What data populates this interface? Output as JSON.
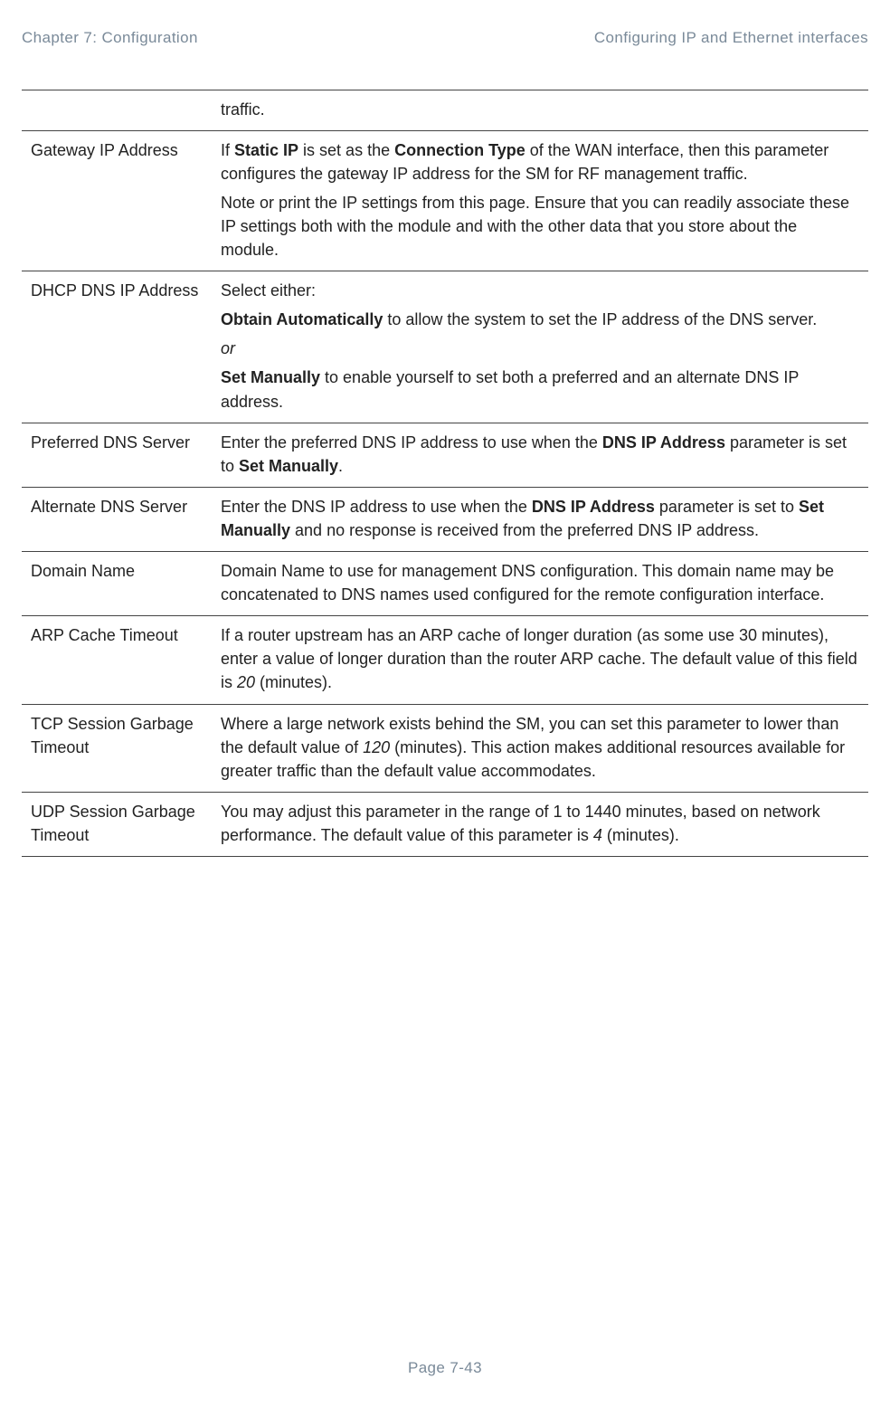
{
  "header": {
    "left": "Chapter 7:  Configuration",
    "right": "Configuring IP and Ethernet interfaces"
  },
  "footer": {
    "text": "Page 7-43"
  },
  "table": {
    "rows": [
      {
        "attr": "",
        "paras": [
          {
            "runs": [
              {
                "t": "traffic."
              }
            ]
          }
        ]
      },
      {
        "attr": "Gateway IP Address",
        "paras": [
          {
            "runs": [
              {
                "t": "If "
              },
              {
                "t": "Static IP",
                "b": true
              },
              {
                "t": " is set as the "
              },
              {
                "t": "Connection Type",
                "b": true
              },
              {
                "t": " of the WAN interface, then this parameter configures the gateway IP address for the SM for RF management traffic."
              }
            ]
          },
          {
            "runs": [
              {
                "t": "Note or print the IP settings from this page. Ensure that you can readily associate these IP settings both with the module and with the other data that you store about the module."
              }
            ]
          }
        ]
      },
      {
        "attr": "DHCP DNS IP Address",
        "paras": [
          {
            "runs": [
              {
                "t": "Select either:"
              }
            ]
          },
          {
            "runs": [
              {
                "t": "Obtain Automatically",
                "b": true
              },
              {
                "t": " to allow the system to set the IP address of the DNS server."
              }
            ]
          },
          {
            "runs": [
              {
                "t": "or",
                "i": true
              }
            ]
          },
          {
            "runs": [
              {
                "t": "Set Manually",
                "b": true
              },
              {
                "t": " to enable yourself to set both a preferred and an alternate DNS IP address."
              }
            ]
          }
        ]
      },
      {
        "attr": "Preferred DNS Server",
        "paras": [
          {
            "runs": [
              {
                "t": "Enter the preferred DNS IP address to use when the "
              },
              {
                "t": "DNS IP Address",
                "b": true
              },
              {
                "t": " parameter is set to "
              },
              {
                "t": "Set Manually",
                "b": true
              },
              {
                "t": "."
              }
            ]
          }
        ]
      },
      {
        "attr": "Alternate DNS Server",
        "paras": [
          {
            "runs": [
              {
                "t": "Enter the DNS IP address to use when the "
              },
              {
                "t": "DNS IP Address",
                "b": true
              },
              {
                "t": " parameter is set to "
              },
              {
                "t": "Set Manually",
                "b": true
              },
              {
                "t": " and no response is received from the preferred DNS IP address."
              }
            ]
          }
        ]
      },
      {
        "attr": "Domain Name",
        "paras": [
          {
            "runs": [
              {
                "t": "Domain Name to use for management DNS configuration.  This domain name may be concatenated to DNS names used configured for the remote configuration interface."
              }
            ]
          }
        ]
      },
      {
        "attr": "ARP Cache Timeout",
        "paras": [
          {
            "runs": [
              {
                "t": "If a router upstream has an ARP cache of longer duration (as some use 30 minutes), enter a value of longer duration than the router ARP cache. The default value of this field is "
              },
              {
                "t": "20",
                "i": true
              },
              {
                "t": " (minutes)."
              }
            ]
          }
        ]
      },
      {
        "attr": "TCP Session Garbage Timeout",
        "paras": [
          {
            "runs": [
              {
                "t": "Where a large network exists behind the SM, you can set this parameter to lower than the default value of "
              },
              {
                "t": "120",
                "i": true
              },
              {
                "t": " (minutes). This action makes additional resources available for greater traffic than the default value accommodates."
              }
            ]
          }
        ]
      },
      {
        "attr": "UDP Session Garbage Timeout",
        "paras": [
          {
            "runs": [
              {
                "t": "You may adjust this parameter in the range of 1 to 1440 minutes, based on network performance. The default value of this parameter is "
              },
              {
                "t": "4",
                "i": true
              },
              {
                "t": " (minutes)."
              }
            ]
          }
        ]
      }
    ]
  }
}
